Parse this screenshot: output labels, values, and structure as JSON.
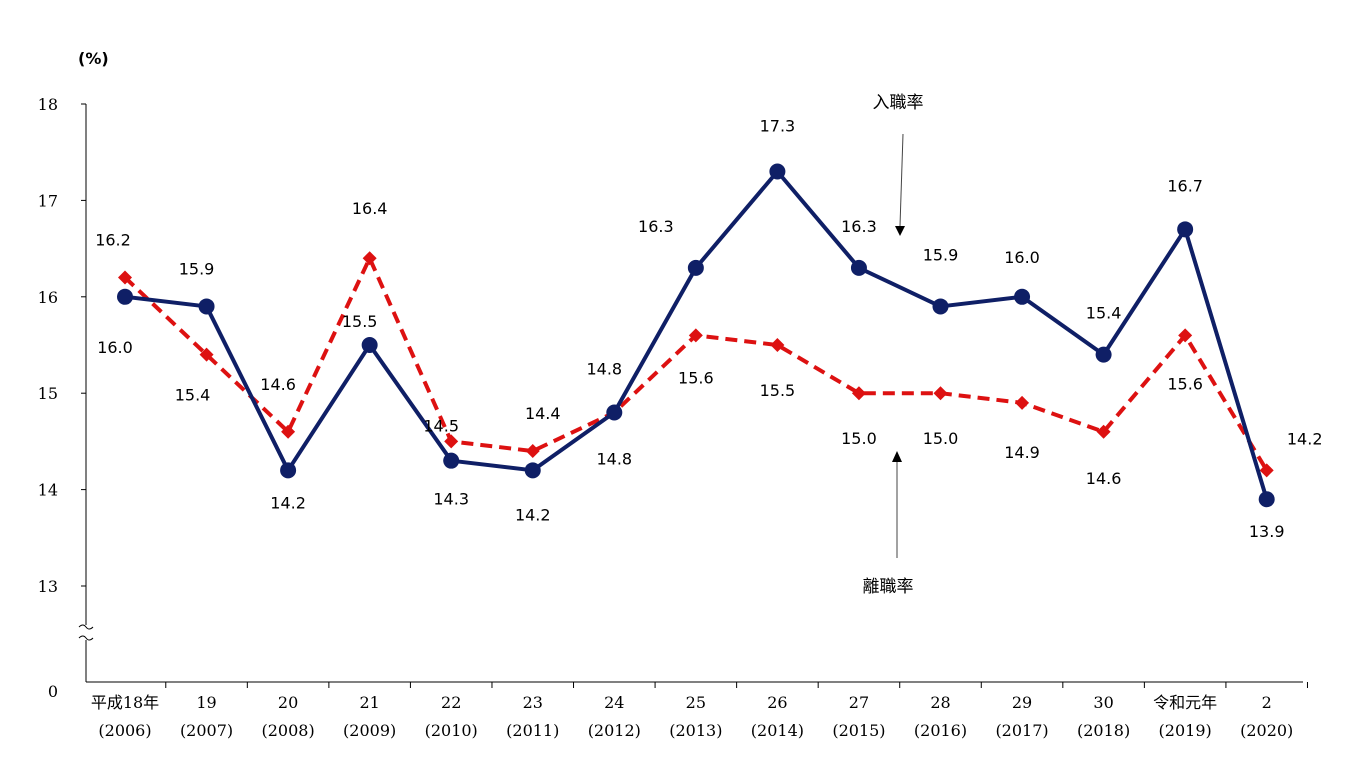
{
  "chart_data": {
    "type": "line",
    "unit_label": "(%)",
    "y_ticks": [
      "18",
      "17",
      "16",
      "15",
      "14",
      "13",
      "0"
    ],
    "ylim": [
      13,
      18
    ],
    "y_axis_break": true,
    "categories": [
      {
        "top": "平成18年",
        "bottom": "(2006)"
      },
      {
        "top": "19",
        "bottom": "(2007)"
      },
      {
        "top": "20",
        "bottom": "(2008)"
      },
      {
        "top": "21",
        "bottom": "(2009)"
      },
      {
        "top": "22",
        "bottom": "(2010)"
      },
      {
        "top": "23",
        "bottom": "(2011)"
      },
      {
        "top": "24",
        "bottom": "(2012)"
      },
      {
        "top": "25",
        "bottom": "(2013)"
      },
      {
        "top": "26",
        "bottom": "(2014)"
      },
      {
        "top": "27",
        "bottom": "(2015)"
      },
      {
        "top": "28",
        "bottom": "(2016)"
      },
      {
        "top": "29",
        "bottom": "(2017)"
      },
      {
        "top": "30",
        "bottom": "(2018)"
      },
      {
        "top": "令和元年",
        "bottom": "(2019)"
      },
      {
        "top": "2",
        "bottom": "(2020)"
      }
    ],
    "series": [
      {
        "name": "入職率",
        "color": "#0f1f66",
        "line_style": "solid",
        "marker": "circle",
        "values": [
          16.0,
          15.9,
          14.2,
          15.5,
          14.3,
          14.2,
          14.8,
          16.3,
          17.3,
          16.3,
          15.9,
          16.0,
          15.4,
          16.7,
          13.9
        ],
        "labels": [
          "16.0",
          "15.9",
          "14.2",
          "15.5",
          "14.3",
          "14.2",
          "14.8",
          "16.3",
          "17.3",
          "16.3",
          "15.9",
          "16.0",
          "15.4",
          "16.7",
          "13.9"
        ]
      },
      {
        "name": "離職率",
        "color": "#dd1111",
        "line_style": "dashed",
        "marker": "diamond",
        "values": [
          16.2,
          15.4,
          14.6,
          16.4,
          14.5,
          14.4,
          14.8,
          15.6,
          15.5,
          15.0,
          15.0,
          14.9,
          14.6,
          15.6,
          14.2
        ],
        "labels": [
          "16.2",
          "15.4",
          "14.6",
          "16.4",
          "14.5",
          "14.4",
          "14.8",
          "15.6",
          "15.5",
          "15.0",
          "15.0",
          "14.9",
          "14.6",
          "15.6",
          "14.2"
        ]
      }
    ],
    "grid": false,
    "legend": "inline annotations with arrows"
  }
}
